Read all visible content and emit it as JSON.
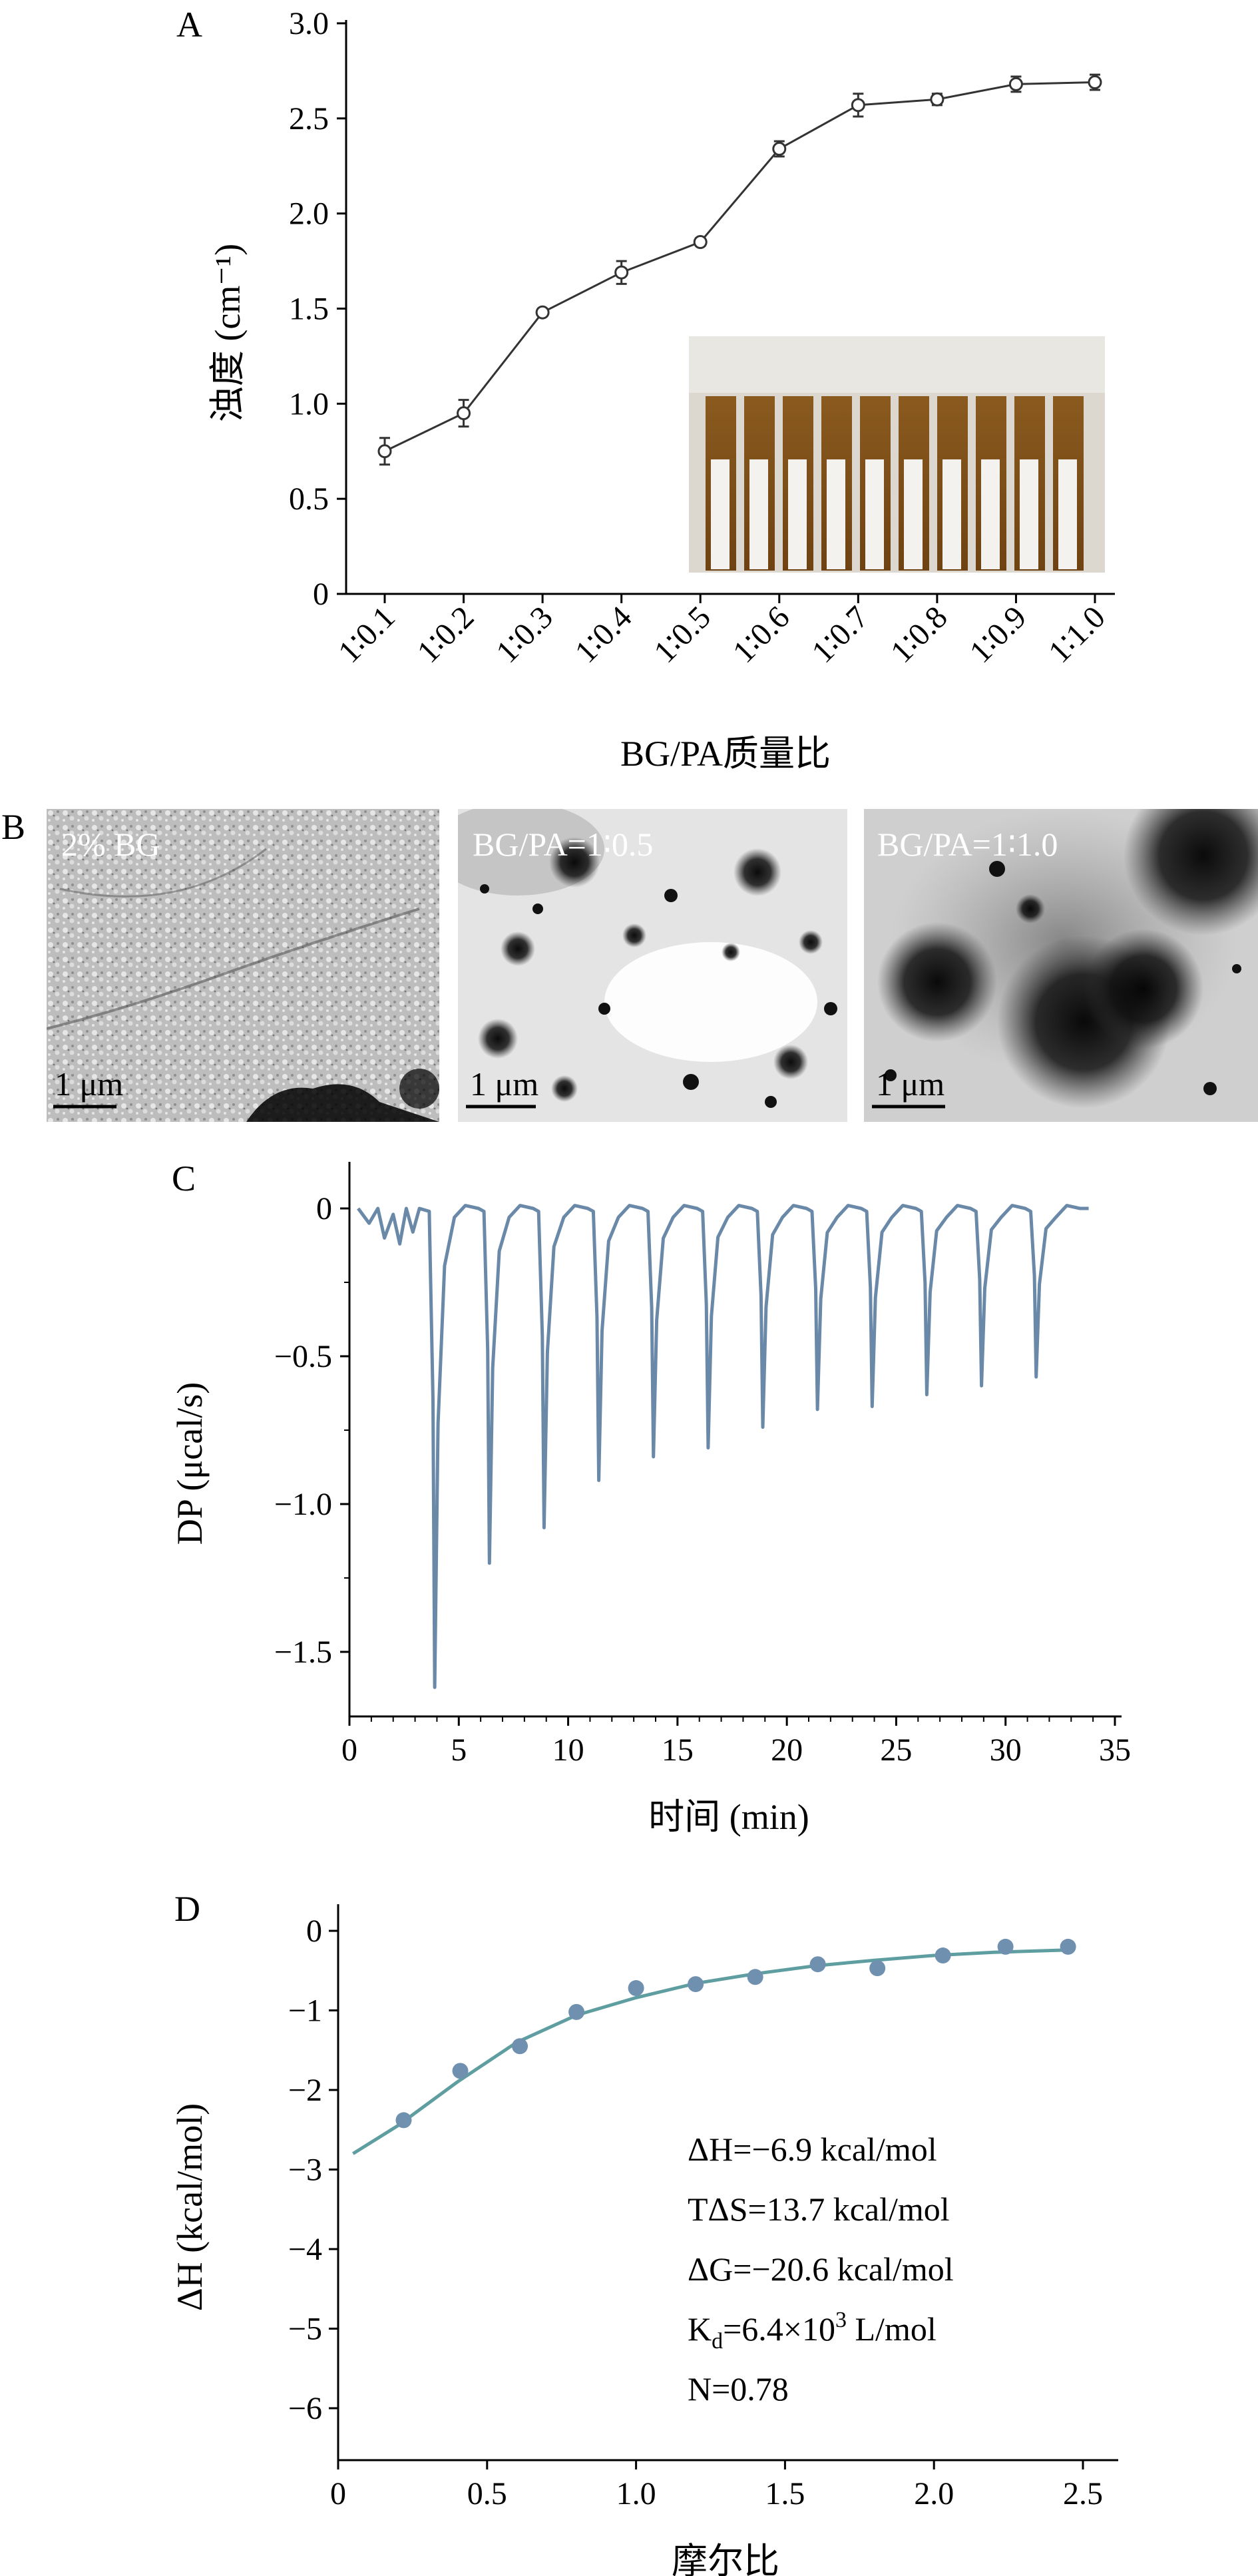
{
  "panels": {
    "A": {
      "letter": "A",
      "ylabel": "浊度 (cm⁻¹)",
      "xlabel": "BG/PA质量比",
      "yticks": [
        "0",
        "0.5",
        "1.0",
        "1.5",
        "2.0",
        "2.5",
        "3.0"
      ],
      "photo_inset": "vial-photo"
    },
    "B": {
      "letter": "B",
      "images": [
        {
          "label": "2% BG",
          "scale": "1 μm"
        },
        {
          "label": "BG/PA=1∶0.5",
          "scale": "1 μm"
        },
        {
          "label": "BG/PA=1∶1.0",
          "scale": "1 μm"
        }
      ]
    },
    "C": {
      "letter": "C",
      "ylabel": "DP (μcal/s)",
      "xlabel": "时间 (min)",
      "yticks": [
        "0",
        "−0.5",
        "−1.0",
        "−1.5"
      ],
      "xticks": [
        "0",
        "5",
        "10",
        "15",
        "20",
        "25",
        "30",
        "35"
      ]
    },
    "D": {
      "letter": "D",
      "ylabel": "ΔH (kcal/mol)",
      "xlabel": "摩尔比",
      "yticks": [
        "0",
        "−1",
        "−2",
        "−3",
        "−4",
        "−5",
        "−6"
      ],
      "xticks": [
        "0",
        "0.5",
        "1.0",
        "1.5",
        "2.0",
        "2.5"
      ],
      "annotations": {
        "dH": "ΔH=−6.9 kcal/mol",
        "TdS": "TΔS=13.7 kcal/mol",
        "dG": "ΔG=−20.6 kcal/mol",
        "Kd_prefix": "K",
        "Kd_sub": "d",
        "Kd_mid": "=6.4×10",
        "Kd_sup": "3",
        "Kd_suffix": " L/mol",
        "N": "N=0.78"
      }
    }
  },
  "colors": {
    "line_A": "#333333",
    "itc_trace": "#6a89a8",
    "itc_points": "#7090b0",
    "itc_fit": "#5f9ea0"
  },
  "chart_data": [
    {
      "panel": "A",
      "type": "line",
      "categories": [
        "1∶0.1",
        "1∶0.2",
        "1∶0.3",
        "1∶0.4",
        "1∶0.5",
        "1∶0.6",
        "1∶0.7",
        "1∶0.8",
        "1∶0.9",
        "1∶1.0"
      ],
      "values": [
        0.75,
        0.95,
        1.48,
        1.69,
        1.85,
        2.34,
        2.57,
        2.6,
        2.68,
        2.69
      ],
      "errors": [
        0.07,
        0.07,
        0.02,
        0.06,
        0.02,
        0.04,
        0.06,
        0.03,
        0.04,
        0.04
      ],
      "xlabel": "BG/PA质量比",
      "ylabel": "浊度 (cm⁻¹)",
      "ylim": [
        0,
        3.0
      ]
    },
    {
      "panel": "C",
      "type": "line",
      "x_range": [
        0.4,
        33.8
      ],
      "baseline": 0.0,
      "injections": [
        {
          "time": 3.9,
          "peak": -1.62
        },
        {
          "time": 6.4,
          "peak": -1.2
        },
        {
          "time": 8.9,
          "peak": -1.08
        },
        {
          "time": 11.4,
          "peak": -0.92
        },
        {
          "time": 13.9,
          "peak": -0.84
        },
        {
          "time": 16.4,
          "peak": -0.81
        },
        {
          "time": 18.9,
          "peak": -0.74
        },
        {
          "time": 21.4,
          "peak": -0.68
        },
        {
          "time": 23.9,
          "peak": -0.67
        },
        {
          "time": 26.4,
          "peak": -0.63
        },
        {
          "time": 28.9,
          "peak": -0.6
        },
        {
          "time": 31.4,
          "peak": -0.57
        }
      ],
      "xlabel": "时间 (min)",
      "ylabel": "DP (μcal/s)",
      "xlim": [
        0,
        35
      ],
      "ylim": [
        -1.72,
        0.2
      ]
    },
    {
      "panel": "D",
      "type": "scatter",
      "x": [
        0.22,
        0.41,
        0.61,
        0.8,
        1.0,
        1.2,
        1.4,
        1.61,
        1.81,
        2.03,
        2.24,
        2.45
      ],
      "y": [
        -2.38,
        -1.76,
        -1.45,
        -1.02,
        -0.72,
        -0.67,
        -0.58,
        -0.42,
        -0.47,
        -0.31,
        -0.2,
        -0.2
      ],
      "fit": {
        "x": [
          0.05,
          0.2,
          0.4,
          0.6,
          0.8,
          1.0,
          1.2,
          1.4,
          1.6,
          1.8,
          2.0,
          2.2,
          2.45
        ],
        "y": [
          -2.8,
          -2.45,
          -1.9,
          -1.4,
          -1.06,
          -0.84,
          -0.66,
          -0.54,
          -0.44,
          -0.37,
          -0.31,
          -0.27,
          -0.24
        ]
      },
      "xlabel": "摩尔比",
      "ylabel": "ΔH (kcal/mol)",
      "xlim": [
        0,
        2.5
      ],
      "ylim": [
        -6.6,
        0.3
      ]
    }
  ]
}
